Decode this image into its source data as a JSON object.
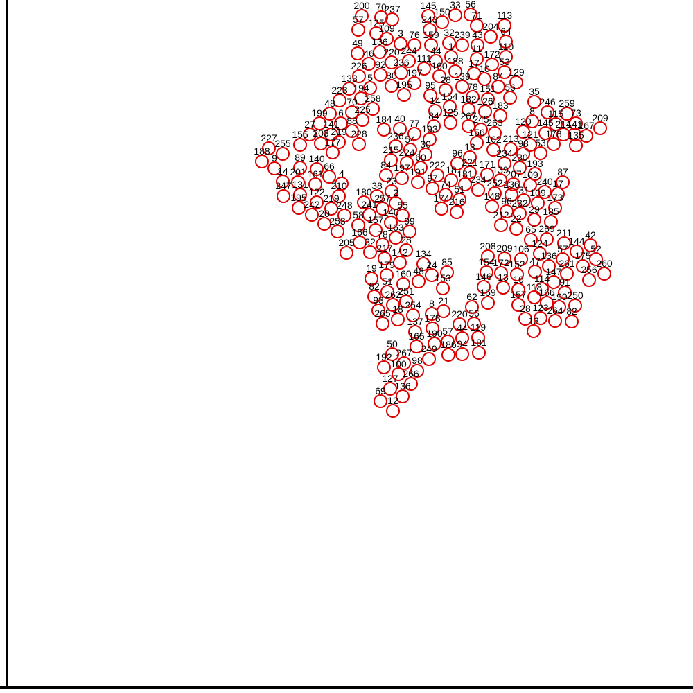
{
  "chart_data": {
    "type": "scatter",
    "title": "",
    "xlabel": "",
    "ylabel": "",
    "xlim": [
      0,
      1000
    ],
    "ylim": [
      0,
      1000
    ],
    "grid": false,
    "legend": "none",
    "marker_color": "#dd0000",
    "label_color": "#000000",
    "points": [
      {
        "id": "200",
        "x": 522,
        "y": 977
      },
      {
        "id": "70",
        "x": 550,
        "y": 975
      },
      {
        "id": "237",
        "x": 566,
        "y": 972
      },
      {
        "id": "145",
        "x": 618,
        "y": 977
      },
      {
        "id": "33",
        "x": 657,
        "y": 978
      },
      {
        "id": "56",
        "x": 679,
        "y": 979
      },
      {
        "id": "150",
        "x": 638,
        "y": 968
      },
      {
        "id": "243",
        "x": 620,
        "y": 957
      },
      {
        "id": "71",
        "x": 688,
        "y": 963
      },
      {
        "id": "113",
        "x": 728,
        "y": 963
      },
      {
        "id": "57",
        "x": 517,
        "y": 957
      },
      {
        "id": "125",
        "x": 543,
        "y": 952
      },
      {
        "id": "109",
        "x": 558,
        "y": 944
      },
      {
        "id": "3",
        "x": 578,
        "y": 937
      },
      {
        "id": "76",
        "x": 598,
        "y": 935
      },
      {
        "id": "159",
        "x": 622,
        "y": 935
      },
      {
        "id": "32",
        "x": 648,
        "y": 938
      },
      {
        "id": "239",
        "x": 667,
        "y": 935
      },
      {
        "id": "43",
        "x": 689,
        "y": 935
      },
      {
        "id": "204",
        "x": 708,
        "y": 947
      },
      {
        "id": "64",
        "x": 730,
        "y": 940
      },
      {
        "id": "49",
        "x": 516,
        "y": 923
      },
      {
        "id": "136",
        "x": 548,
        "y": 925
      },
      {
        "id": "44",
        "x": 629,
        "y": 912
      },
      {
        "id": "1",
        "x": 651,
        "y": 918
      },
      {
        "id": "11",
        "x": 688,
        "y": 915
      },
      {
        "id": "110",
        "x": 730,
        "y": 918
      },
      {
        "id": "46",
        "x": 532,
        "y": 908
      },
      {
        "id": "220",
        "x": 565,
        "y": 910
      },
      {
        "id": "244",
        "x": 590,
        "y": 912
      },
      {
        "id": "172",
        "x": 710,
        "y": 907
      },
      {
        "id": "111",
        "x": 612,
        "y": 901
      },
      {
        "id": "188",
        "x": 657,
        "y": 897
      },
      {
        "id": "17",
        "x": 684,
        "y": 894
      },
      {
        "id": "53",
        "x": 728,
        "y": 896
      },
      {
        "id": "226",
        "x": 518,
        "y": 890
      },
      {
        "id": "92",
        "x": 549,
        "y": 892
      },
      {
        "id": "236",
        "x": 579,
        "y": 895
      },
      {
        "id": "160",
        "x": 634,
        "y": 890
      },
      {
        "id": "10",
        "x": 699,
        "y": 886
      },
      {
        "id": "80",
        "x": 565,
        "y": 876
      },
      {
        "id": "197",
        "x": 598,
        "y": 880
      },
      {
        "id": "139",
        "x": 667,
        "y": 875
      },
      {
        "id": "84",
        "x": 719,
        "y": 875
      },
      {
        "id": "129",
        "x": 745,
        "y": 881
      },
      {
        "id": "133",
        "x": 504,
        "y": 872
      },
      {
        "id": "5",
        "x": 534,
        "y": 873
      },
      {
        "id": "28",
        "x": 643,
        "y": 870
      },
      {
        "id": "195",
        "x": 583,
        "y": 863
      },
      {
        "id": "95",
        "x": 621,
        "y": 862
      },
      {
        "id": "78",
        "x": 682,
        "y": 860
      },
      {
        "id": "151",
        "x": 704,
        "y": 857
      },
      {
        "id": "56b",
        "x": 736,
        "y": 859
      },
      {
        "id": "223",
        "x": 490,
        "y": 855
      },
      {
        "id": "194",
        "x": 521,
        "y": 858
      },
      {
        "id": "35",
        "x": 771,
        "y": 853
      },
      {
        "id": "258",
        "x": 538,
        "y": 843
      },
      {
        "id": "154",
        "x": 649,
        "y": 846
      },
      {
        "id": "182",
        "x": 676,
        "y": 842
      },
      {
        "id": "126",
        "x": 700,
        "y": 839
      },
      {
        "id": "14",
        "x": 628,
        "y": 840
      },
      {
        "id": "48",
        "x": 476,
        "y": 836
      },
      {
        "id": "70b",
        "x": 508,
        "y": 838
      },
      {
        "id": "246",
        "x": 790,
        "y": 838
      },
      {
        "id": "259",
        "x": 818,
        "y": 836
      },
      {
        "id": "183",
        "x": 722,
        "y": 833
      },
      {
        "id": "225",
        "x": 523,
        "y": 827
      },
      {
        "id": "6",
        "x": 492,
        "y": 822
      },
      {
        "id": "199",
        "x": 461,
        "y": 822
      },
      {
        "id": "125b",
        "x": 650,
        "y": 823
      },
      {
        "id": "8",
        "x": 768,
        "y": 825
      },
      {
        "id": "115",
        "x": 802,
        "y": 821
      },
      {
        "id": "73",
        "x": 831,
        "y": 822
      },
      {
        "id": "84b",
        "x": 626,
        "y": 818
      },
      {
        "id": "267",
        "x": 676,
        "y": 818
      },
      {
        "id": "245",
        "x": 694,
        "y": 813
      },
      {
        "id": "263",
        "x": 714,
        "y": 808
      },
      {
        "id": "88",
        "x": 508,
        "y": 811
      },
      {
        "id": "184",
        "x": 554,
        "y": 813
      },
      {
        "id": "40",
        "x": 577,
        "y": 814
      },
      {
        "id": "120",
        "x": 755,
        "y": 810
      },
      {
        "id": "145b",
        "x": 787,
        "y": 808
      },
      {
        "id": "214",
        "x": 813,
        "y": 806
      },
      {
        "id": "209",
        "x": 866,
        "y": 815
      },
      {
        "id": "27",
        "x": 447,
        "y": 806
      },
      {
        "id": "141",
        "x": 478,
        "y": 806
      },
      {
        "id": "77",
        "x": 598,
        "y": 807
      },
      {
        "id": "167",
        "x": 846,
        "y": 804
      },
      {
        "id": "193",
        "x": 620,
        "y": 799
      },
      {
        "id": "141b",
        "x": 829,
        "y": 806
      },
      {
        "id": "203",
        "x": 463,
        "y": 793
      },
      {
        "id": "219",
        "x": 489,
        "y": 795
      },
      {
        "id": "228",
        "x": 518,
        "y": 792
      },
      {
        "id": "155",
        "x": 433,
        "y": 791
      },
      {
        "id": "156",
        "x": 688,
        "y": 794
      },
      {
        "id": "121",
        "x": 765,
        "y": 791
      },
      {
        "id": "178",
        "x": 799,
        "y": 792
      },
      {
        "id": "135",
        "x": 831,
        "y": 790
      },
      {
        "id": "236b",
        "x": 571,
        "y": 789
      },
      {
        "id": "54",
        "x": 592,
        "y": 784
      },
      {
        "id": "213",
        "x": 737,
        "y": 785
      },
      {
        "id": "227",
        "x": 388,
        "y": 786
      },
      {
        "id": "255",
        "x": 408,
        "y": 778
      },
      {
        "id": "162",
        "x": 712,
        "y": 784
      },
      {
        "id": "98",
        "x": 755,
        "y": 778
      },
      {
        "id": "53b",
        "x": 780,
        "y": 779
      },
      {
        "id": "177",
        "x": 480,
        "y": 780
      },
      {
        "id": "30",
        "x": 614,
        "y": 777
      },
      {
        "id": "13",
        "x": 678,
        "y": 773
      },
      {
        "id": "215",
        "x": 564,
        "y": 769
      },
      {
        "id": "224",
        "x": 587,
        "y": 765
      },
      {
        "id": "96",
        "x": 660,
        "y": 764
      },
      {
        "id": "234",
        "x": 728,
        "y": 764
      },
      {
        "id": "60",
        "x": 607,
        "y": 758
      },
      {
        "id": "188b",
        "x": 378,
        "y": 767
      },
      {
        "id": "9",
        "x": 396,
        "y": 757
      },
      {
        "id": "230",
        "x": 750,
        "y": 758
      },
      {
        "id": "89",
        "x": 433,
        "y": 758
      },
      {
        "id": "140",
        "x": 457,
        "y": 756
      },
      {
        "id": "221",
        "x": 678,
        "y": 751
      },
      {
        "id": "171",
        "x": 703,
        "y": 748
      },
      {
        "id": "193b",
        "x": 772,
        "y": 749
      },
      {
        "id": "84c",
        "x": 557,
        "y": 747
      },
      {
        "id": "197b",
        "x": 580,
        "y": 743
      },
      {
        "id": "222",
        "x": 631,
        "y": 747
      },
      {
        "id": "66",
        "x": 475,
        "y": 745
      },
      {
        "id": "18",
        "x": 651,
        "y": 740
      },
      {
        "id": "139b",
        "x": 722,
        "y": 740
      },
      {
        "id": "14b",
        "x": 408,
        "y": 738
      },
      {
        "id": "201",
        "x": 430,
        "y": 737
      },
      {
        "id": "161",
        "x": 455,
        "y": 734
      },
      {
        "id": "4",
        "x": 493,
        "y": 735
      },
      {
        "id": "191",
        "x": 603,
        "y": 737
      },
      {
        "id": "207",
        "x": 741,
        "y": 734
      },
      {
        "id": "109b",
        "x": 765,
        "y": 733
      },
      {
        "id": "87",
        "x": 812,
        "y": 737
      },
      {
        "id": "181",
        "x": 671,
        "y": 734
      },
      {
        "id": "234b",
        "x": 690,
        "y": 726
      },
      {
        "id": "97",
        "x": 624,
        "y": 728
      },
      {
        "id": "74",
        "x": 643,
        "y": 719
      },
      {
        "id": "252",
        "x": 714,
        "y": 721
      },
      {
        "id": "236c",
        "x": 738,
        "y": 719
      },
      {
        "id": "240",
        "x": 786,
        "y": 723
      },
      {
        "id": "17b",
        "x": 805,
        "y": 720
      },
      {
        "id": "23",
        "x": 565,
        "y": 724
      },
      {
        "id": "247",
        "x": 409,
        "y": 717
      },
      {
        "id": "131",
        "x": 433,
        "y": 719
      },
      {
        "id": "210",
        "x": 489,
        "y": 717
      },
      {
        "id": "38",
        "x": 544,
        "y": 717
      },
      {
        "id": "51",
        "x": 663,
        "y": 712
      },
      {
        "id": "31",
        "x": 756,
        "y": 711
      },
      {
        "id": "109c",
        "x": 776,
        "y": 707
      },
      {
        "id": "122",
        "x": 457,
        "y": 708
      },
      {
        "id": "180",
        "x": 525,
        "y": 708
      },
      {
        "id": "2",
        "x": 571,
        "y": 707
      },
      {
        "id": "148",
        "x": 710,
        "y": 702
      },
      {
        "id": "173",
        "x": 801,
        "y": 700
      },
      {
        "id": "195b",
        "x": 431,
        "y": 700
      },
      {
        "id": "219b",
        "x": 478,
        "y": 699
      },
      {
        "id": "257",
        "x": 552,
        "y": 699
      },
      {
        "id": "174",
        "x": 637,
        "y": 699
      },
      {
        "id": "216",
        "x": 659,
        "y": 694
      },
      {
        "id": "96b",
        "x": 731,
        "y": 695
      },
      {
        "id": "232",
        "x": 750,
        "y": 692
      },
      {
        "id": "242",
        "x": 450,
        "y": 690
      },
      {
        "id": "248",
        "x": 497,
        "y": 689
      },
      {
        "id": "241",
        "x": 533,
        "y": 690
      },
      {
        "id": "55",
        "x": 581,
        "y": 689
      },
      {
        "id": "29",
        "x": 771,
        "y": 683
      },
      {
        "id": "185",
        "x": 795,
        "y": 680
      },
      {
        "id": "20",
        "x": 468,
        "y": 677
      },
      {
        "id": "140b",
        "x": 564,
        "y": 679
      },
      {
        "id": "58",
        "x": 517,
        "y": 675
      },
      {
        "id": "212",
        "x": 723,
        "y": 675
      },
      {
        "id": "22",
        "x": 745,
        "y": 670
      },
      {
        "id": "157",
        "x": 542,
        "y": 668
      },
      {
        "id": "253",
        "x": 487,
        "y": 666
      },
      {
        "id": "99",
        "x": 591,
        "y": 666
      },
      {
        "id": "163",
        "x": 571,
        "y": 657
      },
      {
        "id": "65",
        "x": 766,
        "y": 654
      },
      {
        "id": "269",
        "x": 789,
        "y": 655
      },
      {
        "id": "166",
        "x": 519,
        "y": 650
      },
      {
        "id": "78b",
        "x": 552,
        "y": 647
      },
      {
        "id": "211",
        "x": 814,
        "y": 649
      },
      {
        "id": "42",
        "x": 852,
        "y": 646
      },
      {
        "id": "28b",
        "x": 586,
        "y": 639
      },
      {
        "id": "32b",
        "x": 534,
        "y": 636
      },
      {
        "id": "124",
        "x": 779,
        "y": 634
      },
      {
        "id": "144",
        "x": 832,
        "y": 637
      },
      {
        "id": "205",
        "x": 500,
        "y": 635
      },
      {
        "id": "208",
        "x": 704,
        "y": 630
      },
      {
        "id": "209b",
        "x": 728,
        "y": 627
      },
      {
        "id": "106",
        "x": 752,
        "y": 626
      },
      {
        "id": "57b",
        "x": 812,
        "y": 626
      },
      {
        "id": "52",
        "x": 860,
        "y": 626
      },
      {
        "id": "217",
        "x": 555,
        "y": 627
      },
      {
        "id": "142",
        "x": 577,
        "y": 621
      },
      {
        "id": "134",
        "x": 611,
        "y": 619
      },
      {
        "id": "136b",
        "x": 792,
        "y": 616
      },
      {
        "id": "175",
        "x": 841,
        "y": 616
      },
      {
        "id": "47",
        "x": 772,
        "y": 608
      },
      {
        "id": "261",
        "x": 818,
        "y": 605
      },
      {
        "id": "260",
        "x": 872,
        "y": 605
      },
      {
        "id": "154b",
        "x": 702,
        "y": 607
      },
      {
        "id": "172b",
        "x": 723,
        "y": 606
      },
      {
        "id": "152",
        "x": 746,
        "y": 604
      },
      {
        "id": "24",
        "x": 623,
        "y": 603
      },
      {
        "id": "85",
        "x": 645,
        "y": 607
      },
      {
        "id": "19",
        "x": 536,
        "y": 598
      },
      {
        "id": "179",
        "x": 558,
        "y": 603
      },
      {
        "id": "256",
        "x": 850,
        "y": 596
      },
      {
        "id": "48b",
        "x": 604,
        "y": 594
      },
      {
        "id": "160b",
        "x": 582,
        "y": 590
      },
      {
        "id": "147",
        "x": 799,
        "y": 593
      },
      {
        "id": "153",
        "x": 639,
        "y": 584
      },
      {
        "id": "146",
        "x": 698,
        "y": 586
      },
      {
        "id": "114",
        "x": 782,
        "y": 583
      },
      {
        "id": "51b",
        "x": 559,
        "y": 579
      },
      {
        "id": "13b",
        "x": 726,
        "y": 585
      },
      {
        "id": "16",
        "x": 748,
        "y": 582
      },
      {
        "id": "91",
        "x": 815,
        "y": 578
      },
      {
        "id": "82",
        "x": 540,
        "y": 572
      },
      {
        "id": "251",
        "x": 586,
        "y": 565
      },
      {
        "id": "118",
        "x": 771,
        "y": 571
      },
      {
        "id": "166b",
        "x": 789,
        "y": 563
      },
      {
        "id": "262",
        "x": 567,
        "y": 560
      },
      {
        "id": "169",
        "x": 704,
        "y": 563
      },
      {
        "id": "157b",
        "x": 748,
        "y": 560
      },
      {
        "id": "199b",
        "x": 807,
        "y": 557
      },
      {
        "id": "250",
        "x": 830,
        "y": 559
      },
      {
        "id": "62",
        "x": 681,
        "y": 557
      },
      {
        "id": "93",
        "x": 546,
        "y": 552
      },
      {
        "id": "8b",
        "x": 623,
        "y": 547
      },
      {
        "id": "21",
        "x": 640,
        "y": 551
      },
      {
        "id": "123",
        "x": 780,
        "y": 541
      },
      {
        "id": "18b",
        "x": 574,
        "y": 539
      },
      {
        "id": "254",
        "x": 596,
        "y": 545
      },
      {
        "id": "28c",
        "x": 758,
        "y": 540
      },
      {
        "id": "264",
        "x": 801,
        "y": 537
      },
      {
        "id": "82b",
        "x": 825,
        "y": 536
      },
      {
        "id": "265",
        "x": 552,
        "y": 533
      },
      {
        "id": "220b",
        "x": 663,
        "y": 532
      },
      {
        "id": "56c",
        "x": 684,
        "y": 533
      },
      {
        "id": "178b",
        "x": 624,
        "y": 526
      },
      {
        "id": "137",
        "x": 599,
        "y": 521
      },
      {
        "id": "13c",
        "x": 770,
        "y": 522
      },
      {
        "id": "44b",
        "x": 667,
        "y": 512
      },
      {
        "id": "119",
        "x": 690,
        "y": 513
      },
      {
        "id": "57c",
        "x": 646,
        "y": 507
      },
      {
        "id": "190",
        "x": 627,
        "y": 504
      },
      {
        "id": "165",
        "x": 601,
        "y": 500
      },
      {
        "id": "94",
        "x": 667,
        "y": 489
      },
      {
        "id": "181b",
        "x": 691,
        "y": 491
      },
      {
        "id": "50",
        "x": 566,
        "y": 489
      },
      {
        "id": "186",
        "x": 647,
        "y": 488
      },
      {
        "id": "249",
        "x": 619,
        "y": 482
      },
      {
        "id": "267b",
        "x": 583,
        "y": 476
      },
      {
        "id": "192",
        "x": 554,
        "y": 470
      },
      {
        "id": "98b",
        "x": 602,
        "y": 465
      },
      {
        "id": "100",
        "x": 575,
        "y": 460
      },
      {
        "id": "266",
        "x": 593,
        "y": 446
      },
      {
        "id": "127",
        "x": 563,
        "y": 439
      },
      {
        "id": "136c",
        "x": 581,
        "y": 428
      },
      {
        "id": "69",
        "x": 549,
        "y": 421
      },
      {
        "id": "12",
        "x": 567,
        "y": 407
      }
    ]
  }
}
